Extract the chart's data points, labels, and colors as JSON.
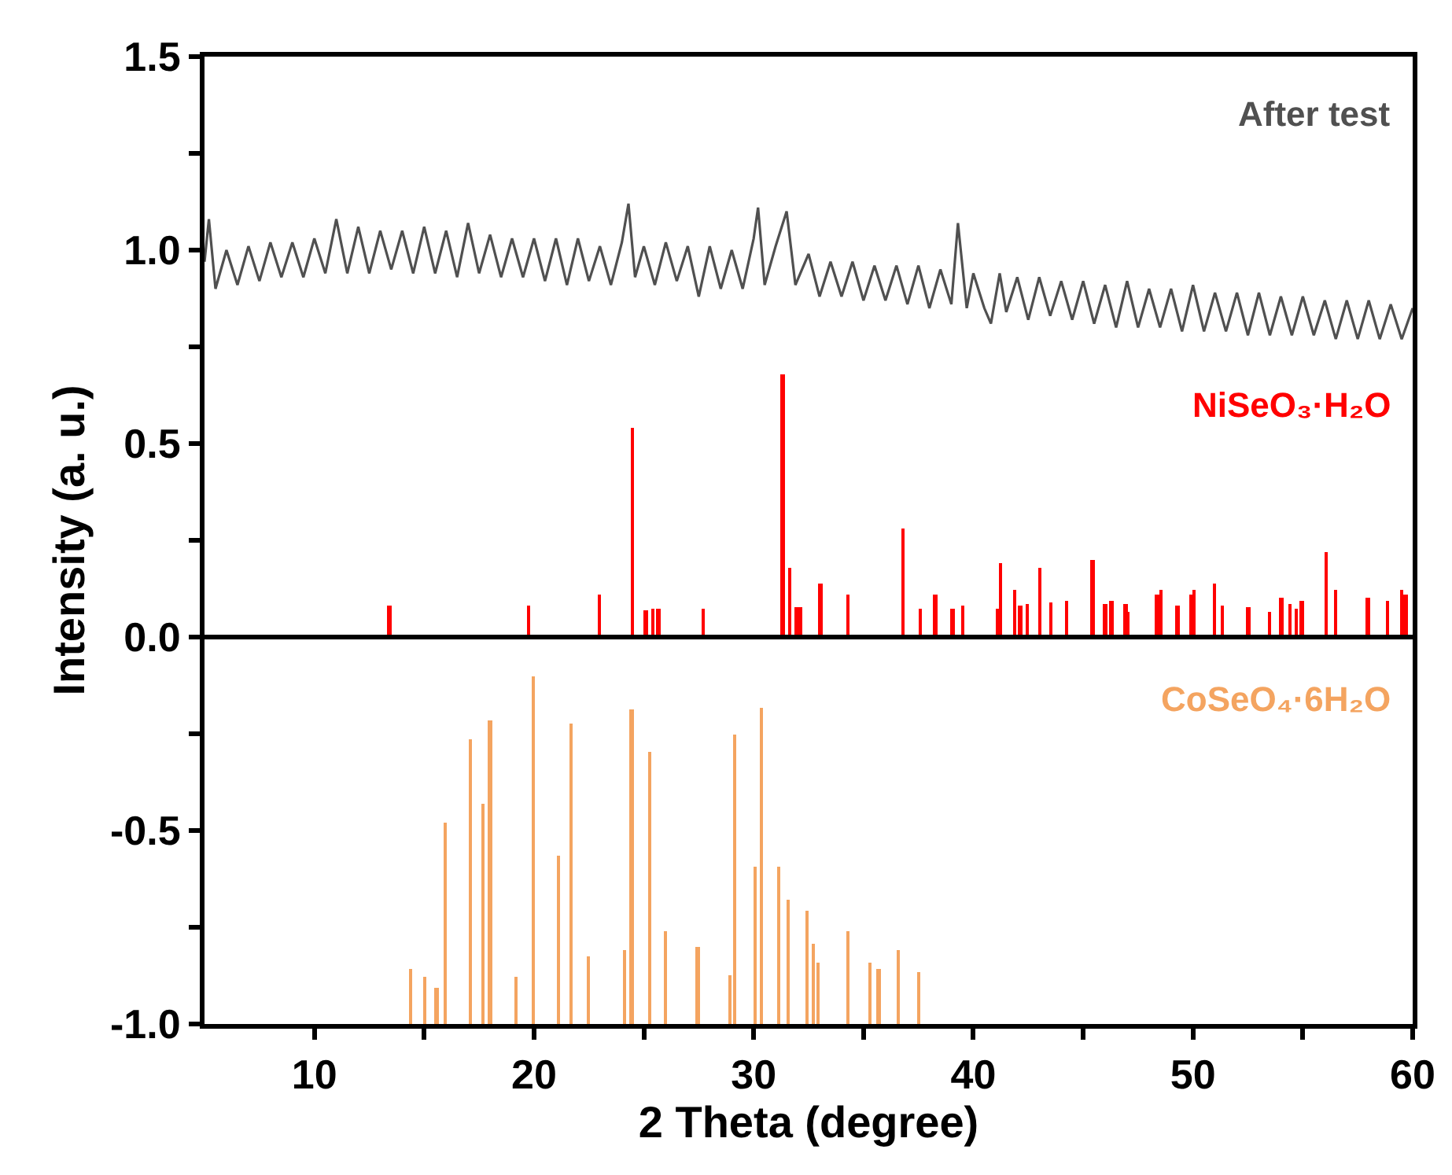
{
  "chart_data": {
    "type": "line",
    "xlabel": "2 Theta (degree)",
    "ylabel": "Intensity (a. u.)",
    "xlim": [
      5,
      60
    ],
    "xticks": [
      {
        "value": 10,
        "label": "10"
      },
      {
        "value": 15,
        "label": null
      },
      {
        "value": 20,
        "label": "20"
      },
      {
        "value": 25,
        "label": null
      },
      {
        "value": 30,
        "label": "30"
      },
      {
        "value": 35,
        "label": null
      },
      {
        "value": 40,
        "label": "40"
      },
      {
        "value": 45,
        "label": null
      },
      {
        "value": 50,
        "label": "50"
      },
      {
        "value": 55,
        "label": null
      },
      {
        "value": 60,
        "label": "60"
      }
    ],
    "ylim": [
      -1,
      1.5
    ],
    "yticks": [
      {
        "value": -1,
        "label": "-1.0"
      },
      {
        "value": -0.75,
        "label": null
      },
      {
        "value": -0.5,
        "label": "-0.5"
      },
      {
        "value": -0.25,
        "label": null
      },
      {
        "value": 0,
        "label": "0.0"
      },
      {
        "value": 0.25,
        "label": null
      },
      {
        "value": 0.5,
        "label": "0.5"
      },
      {
        "value": 0.75,
        "label": null
      },
      {
        "value": 1,
        "label": "1.0"
      },
      {
        "value": 1.25,
        "label": null
      },
      {
        "value": 1.5,
        "label": "1.5"
      }
    ],
    "legend": false,
    "ref_lines": [
      {
        "axis": "y",
        "value": 0,
        "color": "#000000"
      }
    ],
    "series": [
      {
        "name": "After test",
        "color": "#505050",
        "x": [
          5.0,
          5.2,
          5.5,
          6.0,
          6.5,
          7.0,
          7.5,
          8.0,
          8.5,
          9.0,
          9.5,
          10.0,
          10.5,
          11.0,
          11.5,
          12.0,
          12.5,
          13.0,
          13.5,
          14.0,
          14.5,
          15.0,
          15.5,
          16.0,
          16.5,
          17.0,
          17.5,
          18.0,
          18.5,
          19.0,
          19.5,
          20.0,
          20.5,
          21.0,
          21.5,
          22.0,
          22.5,
          23.0,
          23.5,
          24.0,
          24.3,
          24.6,
          25.0,
          25.5,
          26.0,
          26.5,
          27.0,
          27.5,
          28.0,
          28.5,
          29.0,
          29.5,
          30.0,
          30.2,
          30.5,
          31.0,
          31.5,
          31.9,
          32.5,
          33.0,
          33.5,
          34.0,
          34.5,
          35.0,
          35.5,
          36.0,
          36.5,
          37.0,
          37.5,
          38.0,
          38.5,
          39.0,
          39.3,
          39.7,
          40.0,
          40.5,
          40.8,
          41.2,
          41.5,
          42.0,
          42.5,
          43.0,
          43.5,
          44.0,
          44.5,
          45.0,
          45.5,
          46.0,
          46.5,
          47.0,
          47.5,
          48.0,
          48.5,
          49.0,
          49.5,
          50.0,
          50.5,
          51.0,
          51.5,
          52.0,
          52.5,
          53.0,
          53.5,
          54.0,
          54.5,
          55.0,
          55.5,
          56.0,
          56.5,
          57.0,
          57.5,
          58.0,
          58.5,
          59.0,
          59.5,
          60.0
        ],
        "values": [
          0.97,
          1.08,
          0.9,
          1.0,
          0.91,
          1.01,
          0.92,
          1.02,
          0.93,
          1.02,
          0.93,
          1.03,
          0.94,
          1.08,
          0.94,
          1.06,
          0.94,
          1.05,
          0.95,
          1.05,
          0.94,
          1.06,
          0.94,
          1.05,
          0.93,
          1.07,
          0.94,
          1.04,
          0.93,
          1.03,
          0.93,
          1.03,
          0.92,
          1.03,
          0.91,
          1.03,
          0.92,
          1.01,
          0.91,
          1.02,
          1.12,
          0.93,
          1.01,
          0.91,
          1.02,
          0.92,
          1.01,
          0.88,
          1.01,
          0.9,
          1.0,
          0.9,
          1.03,
          1.11,
          0.91,
          1.01,
          1.1,
          0.91,
          0.99,
          0.88,
          0.97,
          0.88,
          0.97,
          0.87,
          0.96,
          0.87,
          0.96,
          0.86,
          0.96,
          0.85,
          0.95,
          0.86,
          1.07,
          0.85,
          0.94,
          0.85,
          0.81,
          0.94,
          0.84,
          0.93,
          0.82,
          0.93,
          0.83,
          0.92,
          0.82,
          0.92,
          0.81,
          0.91,
          0.8,
          0.92,
          0.8,
          0.9,
          0.8,
          0.9,
          0.79,
          0.91,
          0.79,
          0.89,
          0.79,
          0.89,
          0.78,
          0.89,
          0.78,
          0.88,
          0.78,
          0.88,
          0.78,
          0.87,
          0.77,
          0.87,
          0.77,
          0.87,
          0.77,
          0.86,
          0.77,
          0.85
        ]
      },
      {
        "name": "NiSeO₃·H₂O",
        "type": "bar",
        "color": "#ff0000",
        "x": [
          13.44,
          19.79,
          23.0,
          24.51,
          25.11,
          25.44,
          25.68,
          27.73,
          31.34,
          31.67,
          31.98,
          32.15,
          33.06,
          34.3,
          36.82,
          37.6,
          38.28,
          39.07,
          39.54,
          41.12,
          41.26,
          41.9,
          42.15,
          42.45,
          43.05,
          43.55,
          44.27,
          45.44,
          46.01,
          46.3,
          46.94,
          47.06,
          48.38,
          48.56,
          49.31,
          49.9,
          50.07,
          51.0,
          51.35,
          52.53,
          53.48,
          54.03,
          54.43,
          54.7,
          54.96,
          56.06,
          56.51,
          57.97,
          58.87,
          59.51,
          59.69
        ],
        "values": [
          0.08,
          0.08,
          0.11,
          0.54,
          0.07,
          0.075,
          0.075,
          0.074,
          0.68,
          0.18,
          0.078,
          0.078,
          0.14,
          0.11,
          0.28,
          0.075,
          0.11,
          0.075,
          0.08,
          0.073,
          0.19,
          0.12,
          0.08,
          0.086,
          0.18,
          0.088,
          0.093,
          0.2,
          0.086,
          0.093,
          0.086,
          0.066,
          0.11,
          0.12,
          0.08,
          0.11,
          0.12,
          0.14,
          0.08,
          0.078,
          0.067,
          0.1,
          0.086,
          0.075,
          0.093,
          0.22,
          0.12,
          0.1,
          0.093,
          0.12,
          0.11
        ]
      },
      {
        "name": "CoSeO₄·6H₂O",
        "type": "bar",
        "color": "#f4a460",
        "x": [
          14.42,
          15.02,
          15.59,
          15.99,
          17.14,
          17.71,
          18.02,
          19.21,
          20.0,
          21.12,
          21.72,
          22.51,
          24.13,
          24.47,
          25.3,
          26.01,
          27.47,
          28.95,
          29.16,
          30.09,
          30.38,
          31.15,
          31.6,
          32.46,
          32.72,
          32.93,
          34.3,
          35.32,
          35.7,
          36.59,
          37.52
        ],
        "base": [
          -1,
          -1,
          -1,
          -1,
          -1,
          -1,
          -1,
          -1,
          -1,
          -1,
          -1,
          -1,
          -1,
          -1,
          -1,
          -1,
          -1,
          -1,
          -1,
          -1,
          -1,
          -1,
          -1,
          -1,
          -1,
          -1,
          -1,
          -1,
          -1,
          -1,
          -1
        ],
        "values": [
          0.141,
          0.123,
          0.092,
          0.519,
          0.734,
          0.569,
          0.783,
          0.123,
          0.897,
          0.436,
          0.776,
          0.174,
          0.192,
          0.815,
          0.702,
          0.24,
          0.199,
          0.126,
          0.75,
          0.405,
          0.816,
          0.405,
          0.322,
          0.291,
          0.207,
          0.16,
          0.241,
          0.158,
          0.143,
          0.192,
          0.133
        ]
      }
    ]
  }
}
